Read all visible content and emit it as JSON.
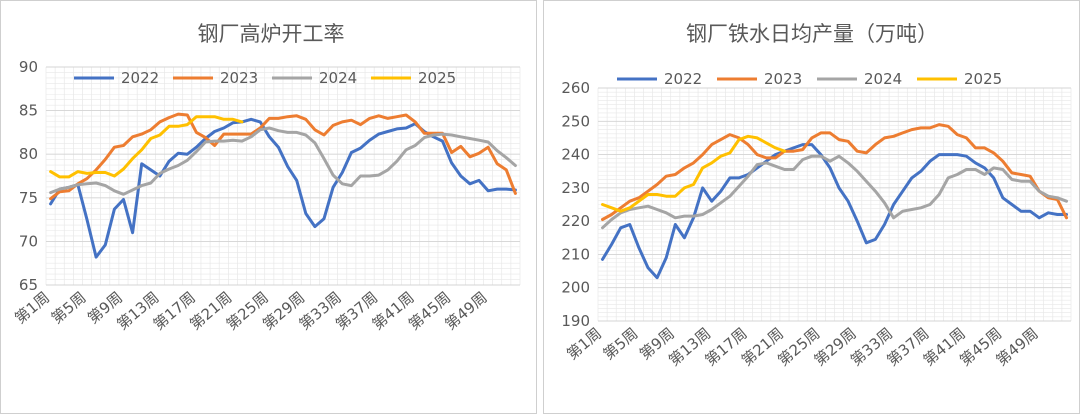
{
  "charts": [
    {
      "id": "blast-furnace-rate",
      "type": "line",
      "title": "钢厂高炉开工率",
      "ylim": [
        65,
        90
      ],
      "yticks": [
        65,
        70,
        75,
        80,
        85,
        90
      ],
      "x_count": 52,
      "x_tick_labels": [
        "第1周",
        "第5周",
        "第9周",
        "第13周",
        "第17周",
        "第21周",
        "第25周",
        "第29周",
        "第33周",
        "第37周",
        "第41周",
        "第45周",
        "第49周"
      ],
      "x_tick_weeks": [
        1,
        5,
        9,
        13,
        17,
        21,
        25,
        29,
        33,
        37,
        41,
        45,
        49
      ],
      "legend": "top",
      "grid": true,
      "series": [
        {
          "name": "2022",
          "color": "#4472C4",
          "values": [
            74.3,
            76.0,
            76.2,
            76.5,
            72.5,
            68.2,
            69.6,
            73.7,
            74.8,
            71.0,
            78.9,
            78.2,
            77.5,
            79.2,
            80.1,
            80.0,
            80.8,
            81.8,
            82.6,
            83.0,
            83.6,
            83.7,
            84.0,
            83.7,
            82.0,
            80.8,
            78.6,
            77.0,
            73.2,
            71.7,
            72.6,
            76.2,
            77.9,
            80.2,
            80.7,
            81.6,
            82.3,
            82.6,
            82.9,
            83.0,
            83.5,
            82.6,
            82.0,
            81.5,
            79.0,
            77.5,
            76.6,
            77.0,
            75.8,
            76.0,
            76.0,
            75.9
          ]
        },
        {
          "name": "2023",
          "color": "#ED7D31",
          "values": [
            74.9,
            75.7,
            75.8,
            76.6,
            77.2,
            78.2,
            79.4,
            80.8,
            81.0,
            82.0,
            82.3,
            82.8,
            83.7,
            84.2,
            84.6,
            84.5,
            82.5,
            81.9,
            81.0,
            82.3,
            82.3,
            82.3,
            82.3,
            83.0,
            84.1,
            84.1,
            84.3,
            84.4,
            84.0,
            82.8,
            82.2,
            83.3,
            83.7,
            83.9,
            83.4,
            84.1,
            84.4,
            84.1,
            84.3,
            84.5,
            83.7,
            82.4,
            82.4,
            82.4,
            80.2,
            80.9,
            79.7,
            80.1,
            80.8,
            78.9,
            78.2,
            75.5
          ]
        },
        {
          "name": "2024",
          "color": "#A5A5A5",
          "values": [
            75.6,
            76.0,
            76.2,
            76.5,
            76.6,
            76.7,
            76.4,
            75.8,
            75.4,
            75.9,
            76.4,
            76.7,
            77.8,
            78.3,
            78.7,
            79.3,
            80.3,
            81.4,
            81.5,
            81.5,
            81.6,
            81.5,
            82.0,
            82.8,
            83.0,
            82.7,
            82.5,
            82.5,
            82.2,
            81.3,
            79.5,
            77.6,
            76.6,
            76.4,
            77.5,
            77.5,
            77.6,
            78.2,
            79.2,
            80.5,
            81.0,
            81.9,
            82.2,
            82.3,
            82.2,
            82.0,
            81.8,
            81.6,
            81.4,
            80.4,
            79.6,
            78.7
          ]
        },
        {
          "name": "2025",
          "color": "#FFC000",
          "values": [
            78.0,
            77.4,
            77.4,
            78.0,
            77.8,
            77.9,
            77.9,
            77.5,
            78.3,
            79.5,
            80.5,
            81.8,
            82.2,
            83.2,
            83.2,
            83.4,
            84.3,
            84.3,
            84.3,
            84.0,
            84.0,
            83.7
          ]
        }
      ]
    },
    {
      "id": "hot-metal-output",
      "type": "line",
      "title": "钢厂铁水日均产量（万吨）",
      "ylim": [
        190,
        260
      ],
      "yticks": [
        190,
        200,
        210,
        220,
        230,
        240,
        250,
        260
      ],
      "x_count": 52,
      "x_tick_labels": [
        "第1周",
        "第5周",
        "第9周",
        "第13周",
        "第17周",
        "第21周",
        "第25周",
        "第29周",
        "第33周",
        "第37周",
        "第41周",
        "第45周",
        "第49周"
      ],
      "x_tick_weeks": [
        1,
        5,
        9,
        13,
        17,
        21,
        25,
        29,
        33,
        37,
        41,
        45,
        49
      ],
      "legend": "top",
      "grid": true,
      "series": [
        {
          "name": "2022",
          "color": "#4472C4",
          "values": [
            208.5,
            213.0,
            218.0,
            219.0,
            212.0,
            206.0,
            203.0,
            209.0,
            219.0,
            215.0,
            221.0,
            230.0,
            226.0,
            229.0,
            233.0,
            233.0,
            234.0,
            236.0,
            238.0,
            240.0,
            241.0,
            242.0,
            243.0,
            243.0,
            240.0,
            236.0,
            230.0,
            226.0,
            220.0,
            213.5,
            214.5,
            219.0,
            225.0,
            229.0,
            233.0,
            235.0,
            238.0,
            240.0,
            240.0,
            240.0,
            239.5,
            237.5,
            236.0,
            233.0,
            227.0,
            225.0,
            223.0,
            223.0,
            221.0,
            222.5,
            222.0,
            222.0
          ]
        },
        {
          "name": "2023",
          "color": "#ED7D31",
          "values": [
            220.5,
            222.0,
            224.0,
            226.0,
            227.0,
            229.0,
            231.0,
            233.5,
            234.0,
            236.0,
            237.5,
            240.0,
            243.0,
            244.5,
            246.0,
            245.0,
            243.0,
            240.0,
            239.0,
            239.0,
            241.0,
            241.0,
            241.5,
            245.0,
            246.5,
            246.5,
            244.5,
            244.0,
            241.0,
            240.5,
            243.0,
            245.0,
            245.5,
            246.5,
            247.5,
            248.0,
            248.0,
            249.0,
            248.5,
            246.0,
            245.0,
            242.0,
            242.0,
            240.5,
            238.0,
            234.5,
            234.0,
            233.5,
            229.0,
            227.0,
            226.5,
            221.0
          ]
        },
        {
          "name": "2024",
          "color": "#A5A5A5",
          "values": [
            218.0,
            220.5,
            222.5,
            223.5,
            224.0,
            224.5,
            223.5,
            222.5,
            221.0,
            221.5,
            221.5,
            222.0,
            223.5,
            225.5,
            227.5,
            230.5,
            233.5,
            237.0,
            237.5,
            236.5,
            235.5,
            235.5,
            238.5,
            239.5,
            239.5,
            238.0,
            239.5,
            237.5,
            235.0,
            232.0,
            229.0,
            225.5,
            221.0,
            223.0,
            223.5,
            224.0,
            225.0,
            228.0,
            233.0,
            234.0,
            235.5,
            235.5,
            234.0,
            236.0,
            235.5,
            232.5,
            232.0,
            232.0,
            229.0,
            227.5,
            227.0,
            226.0
          ]
        },
        {
          "name": "2025",
          "color": "#FFC000",
          "values": [
            225.0,
            224.0,
            223.0,
            224.0,
            226.0,
            228.0,
            228.0,
            227.5,
            227.5,
            230.0,
            231.0,
            236.0,
            237.5,
            239.5,
            240.5,
            244.5,
            245.5,
            245.0,
            243.5,
            242.0,
            241.0
          ]
        }
      ]
    }
  ]
}
